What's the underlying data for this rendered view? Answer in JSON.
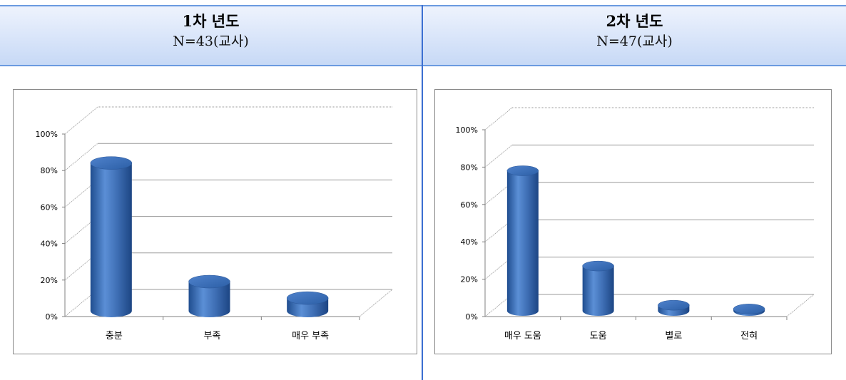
{
  "headers": [
    {
      "title": "1차 년도",
      "subtitle": "N=43(교사)"
    },
    {
      "title": "2차 년도",
      "subtitle": "N=47(교사)"
    }
  ],
  "chart_data": [
    {
      "type": "bar",
      "style": "3d-cylinder",
      "categories": [
        "충분",
        "부족",
        "매우 부족"
      ],
      "values": [
        81,
        16,
        7
      ],
      "ylim": [
        0,
        100
      ],
      "yticks": [
        "0%",
        "20%",
        "40%",
        "60%",
        "80%",
        "100%"
      ],
      "grid": true,
      "color": "#3e6eb4"
    },
    {
      "type": "bar",
      "style": "3d-cylinder",
      "categories": [
        "매우 도움",
        "도움",
        "별로",
        "전혀"
      ],
      "values": [
        75,
        24,
        3,
        1
      ],
      "ylim": [
        0,
        100
      ],
      "yticks": [
        "0%",
        "20%",
        "40%",
        "60%",
        "80%",
        "100%"
      ],
      "grid": true,
      "color": "#3e6eb4"
    }
  ]
}
